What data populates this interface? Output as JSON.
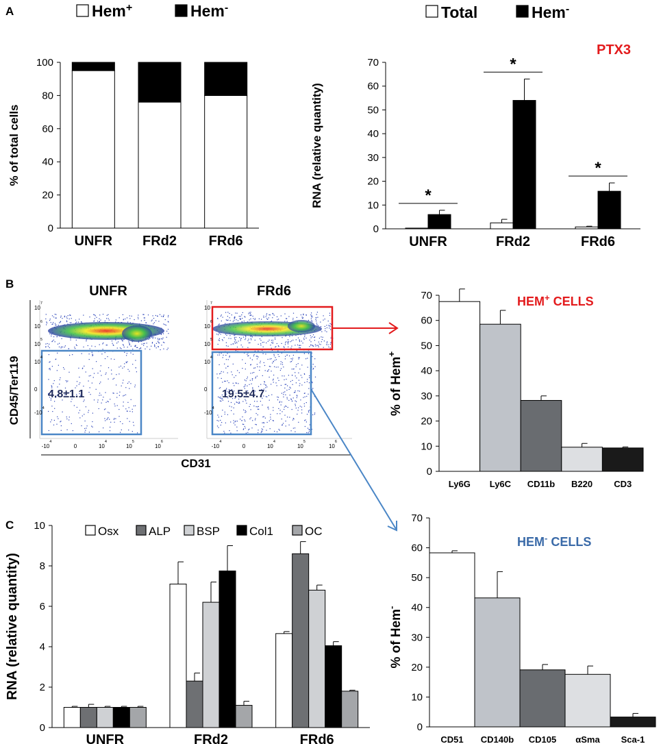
{
  "figure": {
    "panel_labels": [
      "A",
      "B",
      "C"
    ],
    "flow": {
      "title_left": "UNFR",
      "title_right": "FRd6",
      "ylabel": "CD45/Ter119",
      "xlabel": "CD31",
      "gate_left_value": "4.8±1.1",
      "gate_right_value": "19.5±4.7",
      "yticks": [
        "10^7",
        "10^6",
        "10^5",
        "10^4",
        "0",
        "-10^4"
      ],
      "xticks": [
        "-10^4",
        "0",
        "10^4",
        "10^5",
        "10^6"
      ],
      "colors": {
        "hem_plus_gate": "#e31a1c",
        "hem_minus_gate": "#4a86c6",
        "arrow_plus": "#e31a1c",
        "arrow_minus": "#4a86c6"
      }
    }
  },
  "chart_data": [
    {
      "id": "A-left",
      "type": "bar",
      "stacked": true,
      "ylabel": "% of total cells",
      "categories": [
        "UNFR",
        "FRd2",
        "FRd6"
      ],
      "ylim": [
        0,
        100
      ],
      "yticks": [
        0,
        20,
        40,
        60,
        80,
        100
      ],
      "legend": [
        {
          "label": "Hem",
          "sup": "+"
        },
        {
          "label": "Hem",
          "sup": "-"
        }
      ],
      "series": [
        {
          "name": "Hem+",
          "values": [
            95,
            76,
            80
          ],
          "color": "#ffffff"
        },
        {
          "name": "Hem-",
          "values": [
            5,
            24,
            20
          ],
          "color": "#000000"
        }
      ]
    },
    {
      "id": "A-right",
      "type": "bar",
      "title": "PTX3",
      "title_color": "#e31a1c",
      "ylabel": "RNA (relative quantity)",
      "categories": [
        "UNFR",
        "FRd2",
        "FRd6"
      ],
      "ylim": [
        0,
        70
      ],
      "yticks": [
        0,
        10,
        20,
        30,
        40,
        50,
        60,
        70
      ],
      "legend": [
        {
          "label": "Total"
        },
        {
          "label": "Hem",
          "sup": "-"
        }
      ],
      "series": [
        {
          "name": "Total",
          "values": [
            0.3,
            2.5,
            0.8
          ],
          "errors": [
            0,
            1.5,
            0.3
          ],
          "color": "#ffffff"
        },
        {
          "name": "Hem-",
          "values": [
            6,
            54,
            15.8
          ],
          "errors": [
            1.8,
            9,
            3.5
          ],
          "color": "#000000"
        }
      ],
      "significance": [
        {
          "category": "UNFR",
          "label": "*"
        },
        {
          "category": "FRd2",
          "label": "*"
        },
        {
          "category": "FRd6",
          "label": "*"
        }
      ]
    },
    {
      "id": "B-right",
      "type": "bar",
      "title": "HEM",
      "title_sup": "+",
      "title_suffix": " CELLS",
      "title_color": "#e31a1c",
      "ylabel": "% of Hem",
      "ylabel_sup": "+",
      "categories": [
        "Ly6G",
        "Ly6C",
        "CD11b",
        "B220",
        "CD3"
      ],
      "ylim": [
        0,
        70
      ],
      "yticks": [
        0,
        10,
        20,
        30,
        40,
        50,
        60,
        70
      ],
      "values": [
        67.5,
        58.5,
        28.2,
        9.6,
        9.3
      ],
      "errors": [
        5,
        5.5,
        1.8,
        1.5,
        0.4
      ],
      "colors": [
        "#ffffff",
        "#bfc3c9",
        "#696c70",
        "#dddfe2",
        "#1a1a1a"
      ]
    },
    {
      "id": "C-left",
      "type": "bar",
      "ylabel": "RNA (relative quantity)",
      "categories": [
        "UNFR",
        "FRd2",
        "FRd6"
      ],
      "ylim": [
        0,
        10
      ],
      "yticks": [
        0,
        2,
        4,
        6,
        8,
        10
      ],
      "series": [
        {
          "name": "Osx",
          "values": [
            1,
            7.1,
            4.65
          ],
          "errors": [
            0.05,
            1.1,
            0.1
          ],
          "color": "#ffffff"
        },
        {
          "name": "ALP",
          "values": [
            1,
            2.3,
            8.6
          ],
          "errors": [
            0.15,
            0.4,
            0.6
          ],
          "color": "#6e7073"
        },
        {
          "name": "BSP",
          "values": [
            1,
            6.2,
            6.8
          ],
          "errors": [
            0.05,
            1,
            0.25
          ],
          "color": "#cfd1d4"
        },
        {
          "name": "Col1",
          "values": [
            1,
            7.75,
            4.05
          ],
          "errors": [
            0.05,
            1.25,
            0.2
          ],
          "color": "#000000"
        },
        {
          "name": "OC",
          "values": [
            1,
            1.1,
            1.8
          ],
          "errors": [
            0.05,
            0.2,
            0.05
          ],
          "color": "#a4a6a9"
        }
      ]
    },
    {
      "id": "C-right",
      "type": "bar",
      "title": "HEM",
      "title_sup": "-",
      "title_suffix": " CELLS",
      "title_color": "#3a6aa8",
      "ylabel": "% of Hem",
      "ylabel_sup": "-",
      "categories": [
        "CD51",
        "CD140b",
        "CD105",
        "αSma",
        "Sca-1"
      ],
      "ylim": [
        0,
        70
      ],
      "yticks": [
        0,
        10,
        20,
        30,
        40,
        50,
        60,
        70
      ],
      "values": [
        58.3,
        43.2,
        19.1,
        17.6,
        3.3
      ],
      "errors": [
        0.7,
        8.8,
        1.8,
        2.8,
        1.2
      ],
      "colors": [
        "#ffffff",
        "#bfc3c9",
        "#696c70",
        "#dddfe2",
        "#1a1a1a"
      ]
    }
  ]
}
